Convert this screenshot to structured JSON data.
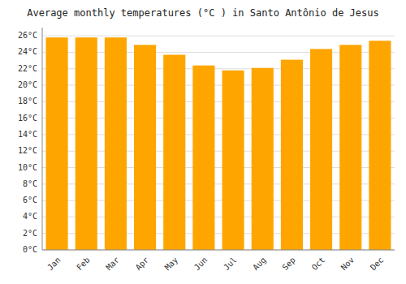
{
  "chart_data": {
    "type": "bar",
    "title": "Average monthly temperatures (°C ) in Santo Antônio de Jesus",
    "categories": [
      "Jan",
      "Feb",
      "Mar",
      "Apr",
      "May",
      "Jun",
      "Jul",
      "Aug",
      "Sep",
      "Oct",
      "Nov",
      "Dec"
    ],
    "values": [
      25.8,
      25.8,
      25.8,
      24.9,
      23.7,
      22.4,
      21.8,
      22.1,
      23.1,
      24.4,
      24.9,
      25.4
    ],
    "color": "#FFA500",
    "ylim": [
      0,
      27
    ],
    "yticks": [
      {
        "value": 0,
        "label": "0°C"
      },
      {
        "value": 2,
        "label": "2°C"
      },
      {
        "value": 4,
        "label": "4°C"
      },
      {
        "value": 6,
        "label": "6°C"
      },
      {
        "value": 8,
        "label": "8°C"
      },
      {
        "value": 10,
        "label": "10°C"
      },
      {
        "value": 12,
        "label": "12°C"
      },
      {
        "value": 14,
        "label": "14°C"
      },
      {
        "value": 16,
        "label": "16°C"
      },
      {
        "value": 18,
        "label": "18°C"
      },
      {
        "value": 20,
        "label": "20°C"
      },
      {
        "value": 22,
        "label": "22°C"
      },
      {
        "value": 24,
        "label": "24°C"
      },
      {
        "value": 26,
        "label": "26°C"
      }
    ],
    "grid": true
  }
}
